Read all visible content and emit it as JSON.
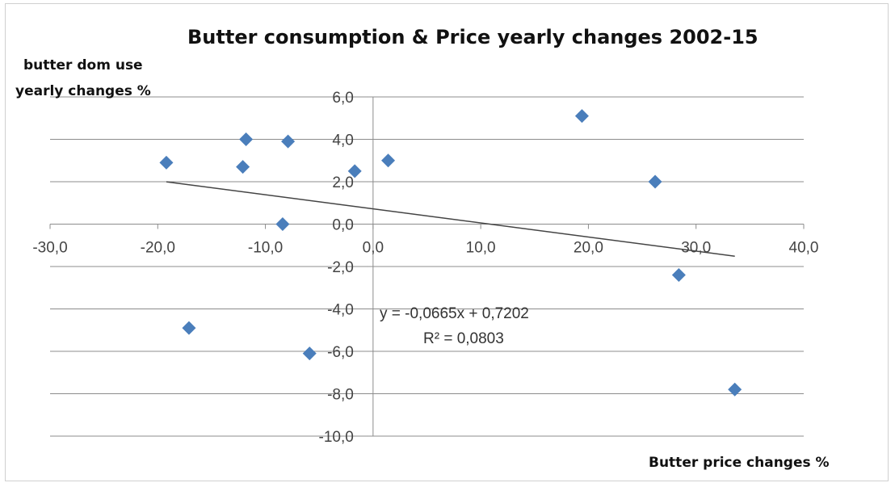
{
  "chart_data": {
    "type": "scatter",
    "title": "Butter consumption  &  Price yearly changes 2002-15",
    "ylabel_lines": [
      "butter dom use",
      "yearly changes %"
    ],
    "xlabel": "Butter price changes %",
    "xlim": [
      -30,
      40
    ],
    "ylim": [
      -10,
      6
    ],
    "x_ticks": [
      -30,
      -20,
      -10,
      0,
      10,
      20,
      30,
      40
    ],
    "y_ticks": [
      6,
      4,
      2,
      0,
      -2,
      -4,
      -6,
      -8,
      -10
    ],
    "x_tick_labels": [
      "-30,0",
      "-20,0",
      "-10,0",
      "0,0",
      "10,0",
      "20,0",
      "30,0",
      "40,0"
    ],
    "y_tick_labels": [
      "6,0",
      "4,0",
      "2,0",
      "0,0",
      "-2,0",
      "-4,0",
      "-6,0",
      "-8,0",
      "-10,0"
    ],
    "grid": true,
    "marker_color": "#4a7ebb",
    "points": [
      {
        "x": -19.2,
        "y": 2.9
      },
      {
        "x": -17.1,
        "y": -4.9
      },
      {
        "x": -11.8,
        "y": 4.0
      },
      {
        "x": -12.1,
        "y": 2.7
      },
      {
        "x": -7.9,
        "y": 3.9
      },
      {
        "x": -8.4,
        "y": 0.0
      },
      {
        "x": -5.9,
        "y": -6.1
      },
      {
        "x": -1.7,
        "y": 2.5
      },
      {
        "x": 1.4,
        "y": 3.0
      },
      {
        "x": 19.4,
        "y": 5.1
      },
      {
        "x": 26.2,
        "y": 2.0
      },
      {
        "x": 28.4,
        "y": -2.4
      },
      {
        "x": 33.6,
        "y": -7.8
      }
    ],
    "trendline": {
      "x_start": -19.2,
      "x_end": 33.6,
      "slope": -0.0665,
      "intercept": 0.7202,
      "color": "#444444",
      "equation": "y = -0,0665x + 0,7202",
      "r_squared": "R² = 0,0803"
    }
  }
}
